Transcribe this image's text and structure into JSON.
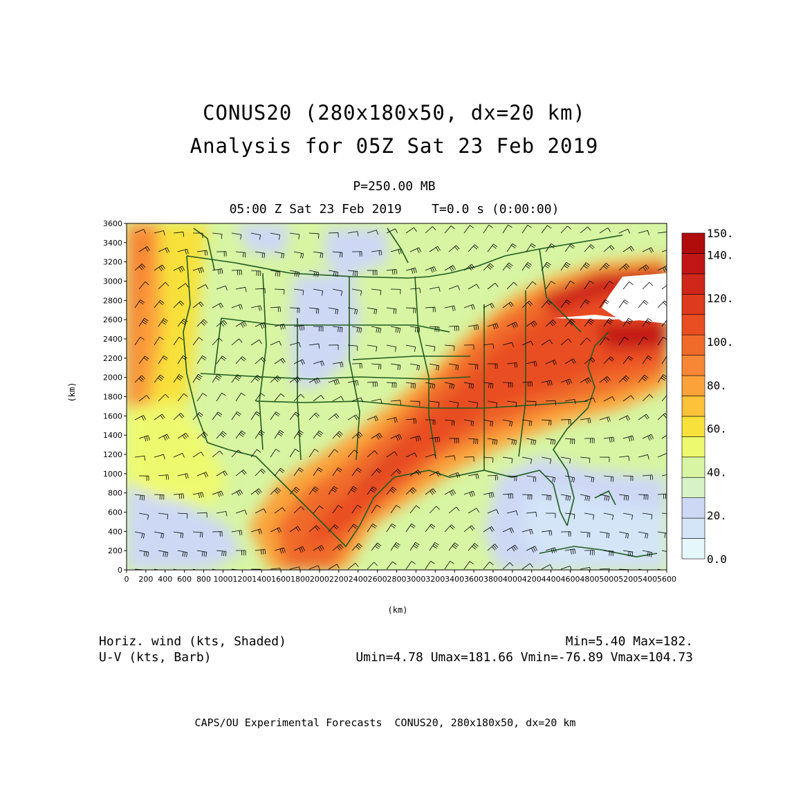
{
  "title": {
    "line1": "CONUS20 (280x180x50, dx=20 km)",
    "line2": "Analysis for 05Z Sat 23 Feb 2019"
  },
  "level": "P=250.00 MB",
  "timeline": "05:00 Z Sat 23 Feb 2019    T=0.0 s (0:00:00)",
  "axes": {
    "xlabel": "(km)",
    "ylabel": "(km)",
    "xticks": [
      "0",
      "200",
      "400",
      "600",
      "800",
      "1000",
      "1200",
      "1400",
      "1600",
      "1800",
      "2000",
      "2200",
      "2400",
      "2600",
      "2800",
      "3000",
      "3200",
      "3400",
      "3600",
      "3800",
      "4000",
      "4200",
      "4400",
      "4600",
      "4800",
      "5000",
      "5200",
      "5400",
      "5600"
    ],
    "yticks": [
      "0",
      "200",
      "400",
      "600",
      "800",
      "1000",
      "1200",
      "1400",
      "1600",
      "1800",
      "2000",
      "2200",
      "2400",
      "2600",
      "2800",
      "3000",
      "3200",
      "3400",
      "3600"
    ],
    "xrange": [
      0,
      5600
    ],
    "yrange": [
      0,
      3600
    ]
  },
  "colorbar": {
    "labels": [
      "150.",
      "140.",
      "120.",
      "100.",
      "80.",
      "60.",
      "40.",
      "20.",
      "0.0"
    ],
    "levels": [
      0,
      10,
      20,
      30,
      40,
      50,
      60,
      70,
      80,
      90,
      100,
      110,
      120,
      130,
      140,
      150
    ],
    "colors": [
      "#e6f7fb",
      "#d3e5f7",
      "#cdd8f5",
      "#d6f2c6",
      "#d7f5a2",
      "#eefa6e",
      "#f8e13a",
      "#fbc23a",
      "#fba33a",
      "#f88735",
      "#f06a2a",
      "#e94e22",
      "#dd3a1e",
      "#cf281a",
      "#c21616",
      "#b00c0c"
    ]
  },
  "legend": {
    "left1": "Horiz. wind (kts, Shaded)",
    "left2": "U-V (kts, Barb)",
    "right1": "Min=5.40 Max=182.",
    "right2": "Umin=4.78 Umax=181.66 Vmin=-76.89 Vmax=104.73"
  },
  "footer": "CAPS/OU Experimental Forecasts  CONUS20, 280x180x50, dx=20 km",
  "colors": {
    "border": "#1f5a1f",
    "barb": "#000000"
  }
}
